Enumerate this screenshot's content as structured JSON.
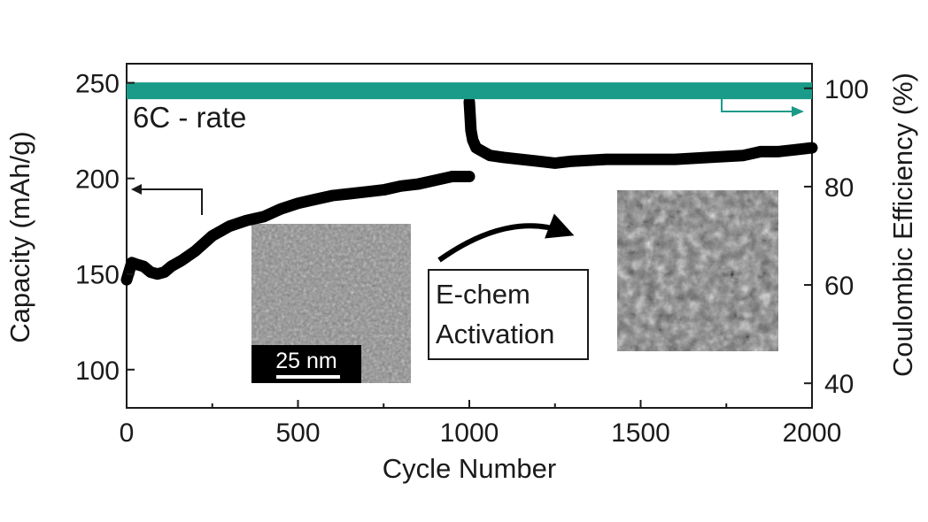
{
  "chart_data": {
    "type": "line",
    "xlabel": "Cycle Number",
    "ylabel_left": "Capacity (mAh/g)",
    "ylabel_right": "Coulombic Efficiency (%)",
    "xlim": [
      0,
      2000
    ],
    "ylim_left": [
      80,
      260
    ],
    "ylim_right": [
      35,
      105
    ],
    "x_ticks": [
      0,
      500,
      1000,
      1500,
      2000
    ],
    "y_left_ticks": [
      100,
      150,
      200,
      250
    ],
    "y_right_ticks": [
      40,
      60,
      80,
      100
    ],
    "annotation": "6C - rate",
    "box_label": [
      "E-chem",
      "Activation"
    ],
    "scale_bar_label": "25 nm",
    "colors": {
      "capacity": "#000000",
      "efficiency": "#1a9a88"
    },
    "series": [
      {
        "axis": "left",
        "color": "#000000",
        "segments": [
          {
            "x": [
              0,
              15,
              30,
              50,
              70,
              90,
              110,
              130,
              160,
              200,
              250,
              300,
              350,
              400,
              450,
              500,
              550,
              600,
              650,
              700,
              750,
              800,
              850,
              900,
              950,
              1000
            ],
            "y": [
              147,
              156,
              155,
              154,
              151,
              150,
              151,
              154,
              157,
              162,
              170,
              175,
              178,
              180,
              184,
              187,
              189,
              191,
              192,
              193,
              194,
              196,
              197,
              199,
              201,
              201
            ]
          },
          {
            "x": [
              1000,
              1005,
              1010,
              1020,
              1040,
              1060,
              1100,
              1150,
              1200,
              1250,
              1300,
              1400,
              1500,
              1600,
              1700,
              1800,
              1850,
              1900,
              1950,
              2000
            ],
            "y": [
              240,
              225,
              220,
              216,
              214,
              212,
              211,
              210,
              209,
              208,
              209,
              210,
              210,
              210,
              211,
              212,
              214,
              214,
              215,
              216
            ]
          }
        ]
      },
      {
        "axis": "right",
        "color": "#1a9a88",
        "segments": [
          {
            "x": [
              0,
              2000
            ],
            "y": [
              99.5,
              99.5
            ]
          }
        ]
      }
    ]
  }
}
